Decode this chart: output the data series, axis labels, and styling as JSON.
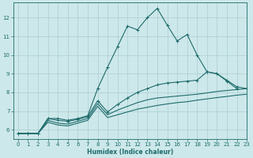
{
  "bg_color": "#cde8ea",
  "grid_color": "#aacdd2",
  "line_color": "#1e6b6b",
  "xlabel": "Humidex (Indice chaleur)",
  "xlim": [
    -0.5,
    23
  ],
  "ylim": [
    5.5,
    12.8
  ],
  "xticks": [
    0,
    1,
    2,
    3,
    4,
    5,
    6,
    7,
    8,
    9,
    10,
    11,
    12,
    13,
    14,
    15,
    16,
    17,
    18,
    19,
    20,
    21,
    22,
    23
  ],
  "yticks": [
    6,
    7,
    8,
    9,
    10,
    11,
    12
  ],
  "line1_x": [
    0,
    1,
    2,
    3,
    4,
    5,
    6,
    7,
    8,
    9,
    10,
    11,
    12,
    13,
    14,
    15,
    16,
    17,
    18,
    19,
    20,
    21,
    22
  ],
  "line1_y": [
    5.8,
    5.8,
    5.8,
    6.6,
    6.6,
    6.5,
    6.6,
    6.75,
    8.2,
    9.35,
    10.45,
    11.55,
    11.35,
    12.0,
    12.5,
    11.6,
    10.75,
    11.1,
    10.0,
    9.1,
    9.0,
    8.6,
    8.2
  ],
  "line2_x": [
    0,
    1,
    2,
    3,
    4,
    5,
    6,
    7,
    8,
    9,
    10,
    11,
    12,
    13,
    14,
    15,
    16,
    17,
    18,
    19,
    20,
    21,
    22,
    23
  ],
  "line2_y": [
    5.8,
    5.8,
    5.8,
    6.6,
    6.5,
    6.45,
    6.55,
    6.7,
    7.55,
    6.95,
    7.35,
    7.7,
    8.0,
    8.2,
    8.4,
    8.5,
    8.55,
    8.6,
    8.65,
    9.1,
    9.0,
    8.65,
    8.3,
    8.2
  ],
  "line3_x": [
    0,
    1,
    2,
    3,
    4,
    5,
    6,
    7,
    8,
    9,
    10,
    11,
    12,
    13,
    14,
    15,
    16,
    17,
    18,
    19,
    20,
    21,
    22,
    23
  ],
  "line3_y": [
    5.8,
    5.8,
    5.8,
    6.5,
    6.35,
    6.3,
    6.45,
    6.6,
    7.4,
    6.8,
    7.05,
    7.25,
    7.45,
    7.6,
    7.7,
    7.75,
    7.8,
    7.85,
    7.9,
    7.97,
    8.05,
    8.1,
    8.15,
    8.2
  ],
  "line4_x": [
    0,
    1,
    2,
    3,
    4,
    5,
    6,
    7,
    8,
    9,
    10,
    11,
    12,
    13,
    14,
    15,
    16,
    17,
    18,
    19,
    20,
    21,
    22,
    23
  ],
  "line4_y": [
    5.8,
    5.8,
    5.8,
    6.4,
    6.25,
    6.2,
    6.35,
    6.5,
    7.25,
    6.65,
    6.8,
    6.95,
    7.1,
    7.2,
    7.3,
    7.38,
    7.45,
    7.5,
    7.58,
    7.65,
    7.72,
    7.78,
    7.85,
    7.9
  ]
}
